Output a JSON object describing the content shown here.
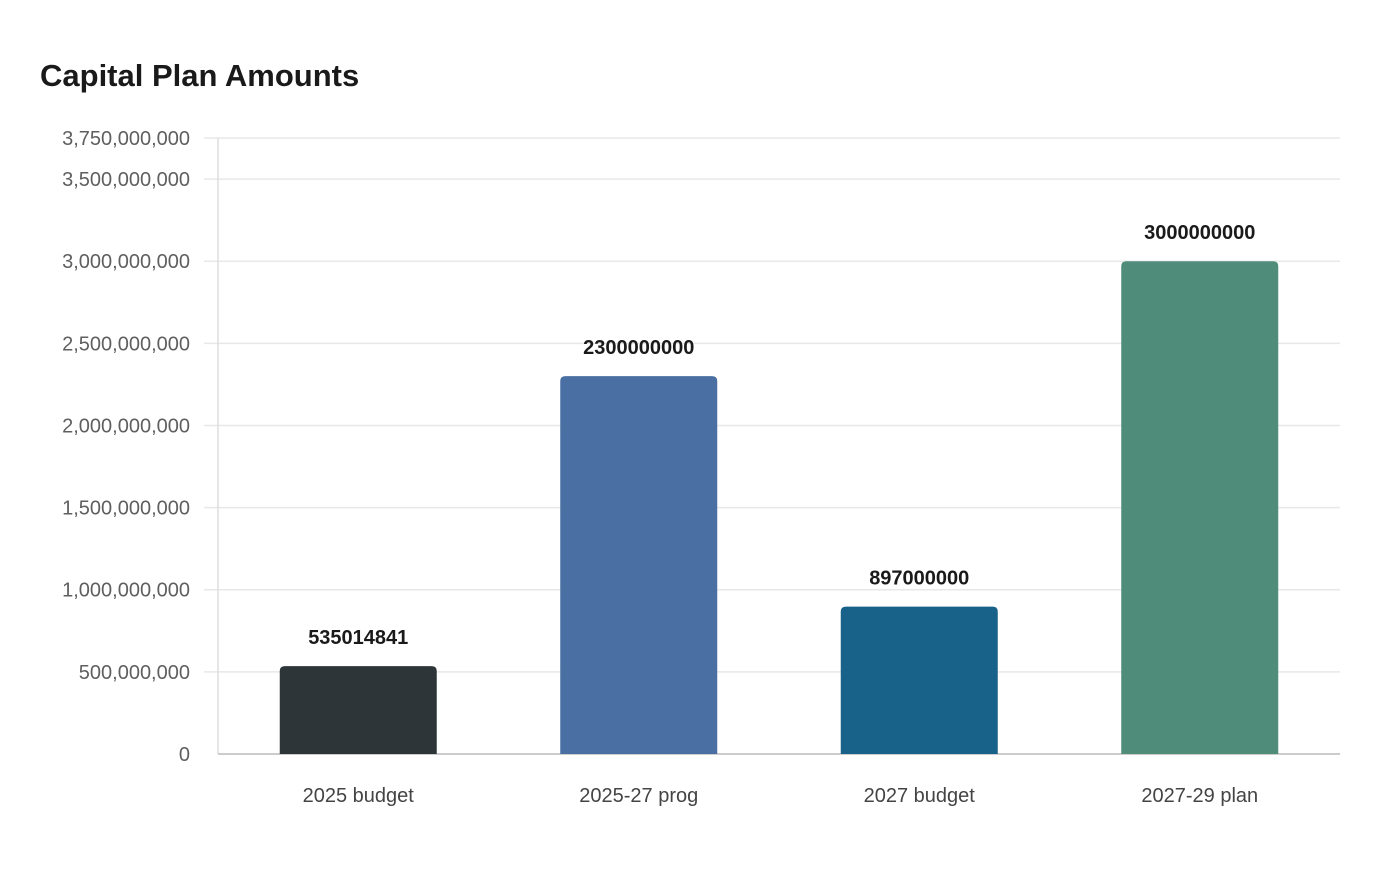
{
  "chart_data": {
    "type": "bar",
    "title": "Capital Plan Amounts",
    "xlabel": "",
    "ylabel": "",
    "categories": [
      "2025 budget",
      "2025-27 prog",
      "2027 budget",
      "2027-29 plan"
    ],
    "values": [
      535014841,
      2300000000,
      897000000,
      3000000000
    ],
    "data_labels": [
      "535014841",
      "2300000000",
      "897000000",
      "3000000000"
    ],
    "bar_colors": [
      "#2e3538",
      "#4a6fa3",
      "#186188",
      "#4f8c7a"
    ],
    "ylim": [
      0,
      3750000000
    ],
    "yticks": [
      0,
      500000000,
      1000000000,
      1500000000,
      2000000000,
      2500000000,
      3000000000,
      3500000000,
      3750000000
    ],
    "ytick_labels": [
      "0",
      "500,000,000",
      "1,000,000,000",
      "1,500,000,000",
      "2,000,000,000",
      "2,500,000,000",
      "3,000,000,000",
      "3,500,000,000",
      "3,750,000,000"
    ],
    "grid": true,
    "legend": "none"
  }
}
